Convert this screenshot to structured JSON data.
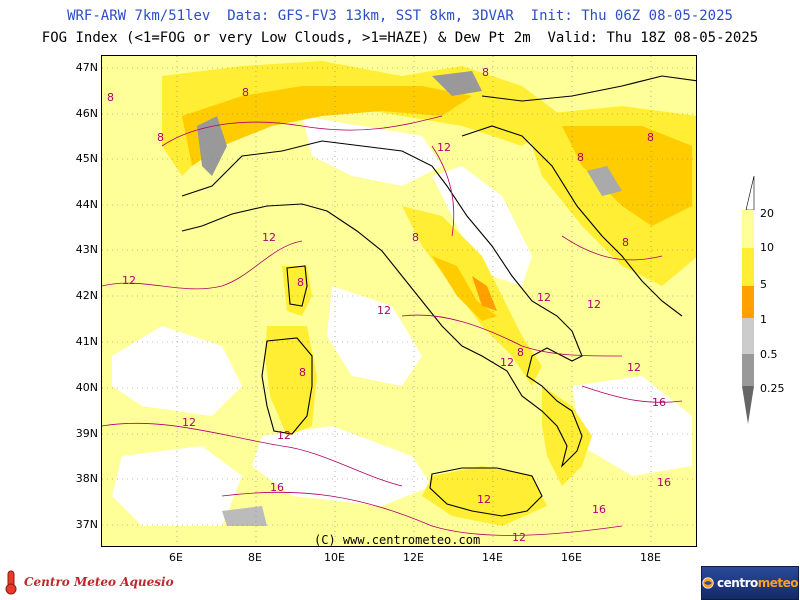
{
  "header": {
    "line1": "WRF-ARW 7km/51lev  Data: GFS-FV3 13km, SST 8km, 3DVAR  Init: Thu 06Z 08-05-2025",
    "line2": "FOG Index (<1=FOG or very Low Clouds, >1=HAZE) & Dew Pt 2m  Valid: Thu 18Z 08-05-2025"
  },
  "map": {
    "lat_labels": [
      "47N",
      "46N",
      "45N",
      "44N",
      "43N",
      "42N",
      "41N",
      "40N",
      "39N",
      "38N",
      "37N"
    ],
    "lon_labels": [
      "6E",
      "8E",
      "10E",
      "12E",
      "14E",
      "16E",
      "18E"
    ],
    "contour_labels": [
      "8",
      "8",
      "8",
      "8",
      "8",
      "8",
      "8",
      "8",
      "8",
      "8",
      "8",
      "12",
      "12",
      "12",
      "12",
      "12",
      "12",
      "12",
      "12",
      "12",
      "12",
      "12",
      "12",
      "16",
      "16",
      "16",
      "16"
    ],
    "copyright": "(C) www.centrometeo.com"
  },
  "legend": {
    "labels": [
      "20",
      "10",
      "5",
      "1",
      "0.5",
      "0.25"
    ],
    "colors": {
      "c20": "#ffff99",
      "c10": "#ffee33",
      "c5": "#ffcc00",
      "c1": "#ff9f00",
      "c05": "#cccccc",
      "c025": "#999999",
      "c0": "#666666"
    }
  },
  "logos": {
    "left_text": "Centro Meteo Aquesio",
    "right_text_a": "centro",
    "right_text_b": "meteo"
  }
}
